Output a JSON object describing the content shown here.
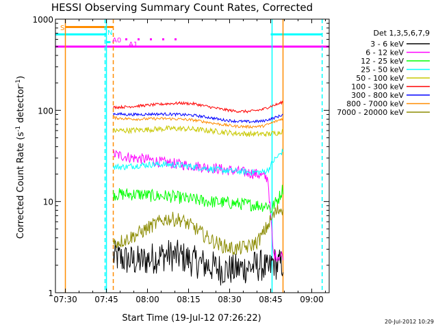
{
  "chart_data": {
    "type": "line",
    "title": "HESSI Observing Summary Count Rates, Corrected",
    "xlabel": "Start Time (19-Jul-12 07:26:22)",
    "ylabel": "Corrected Count Rate (s",
    "ylabel_sup1": "-1",
    "ylabel_mid": " detector",
    "ylabel_sup2": "-1",
    "ylabel_end": ")",
    "yscale": "log",
    "ylim": [
      1,
      1000
    ],
    "x_ticks": [
      "07:30",
      "07:45",
      "08:00",
      "08:15",
      "08:30",
      "08:45",
      "09:00"
    ],
    "x_tick_minutes": [
      30,
      45,
      60,
      75,
      90,
      105,
      120
    ],
    "xlim_minutes": [
      26.37,
      126.37
    ],
    "y_ticks": [
      "1",
      "10",
      "100",
      "1000"
    ],
    "y_tick_values": [
      1,
      10,
      100,
      1000
    ],
    "legend_title": "Det 1,3,5,6,7,9",
    "series": [
      {
        "name": "3 - 6 keV",
        "color": "#000000",
        "start": 47.5,
        "end": 109.5,
        "t": [
          47.5,
          52,
          57,
          62,
          67,
          72,
          77,
          82,
          87,
          92,
          97,
          102,
          104,
          106,
          107.5,
          109.5
        ],
        "v": [
          2.5,
          2.3,
          2.2,
          2.4,
          2.6,
          2.5,
          2.2,
          2.0,
          1.8,
          1.8,
          1.9,
          2.0,
          1.7,
          2.2,
          2.0,
          2.1
        ]
      },
      {
        "name": "6 - 12 keV",
        "color": "#ff00ff",
        "start": 47.5,
        "end": 109.5,
        "t": [
          47.5,
          50,
          55,
          60,
          65,
          70,
          75,
          80,
          85,
          90,
          95,
          100,
          104,
          106,
          108,
          109.5
        ],
        "v": [
          33,
          32,
          30,
          29,
          27,
          26,
          25,
          24,
          23,
          22,
          21,
          20,
          18,
          2.6,
          2.5,
          2.6
        ]
      },
      {
        "name": "12 - 25 keV",
        "color": "#00ff00",
        "start": 47.5,
        "end": 109.5,
        "t": [
          47.5,
          52,
          57,
          62,
          67,
          72,
          77,
          82,
          87,
          92,
          97,
          102,
          104,
          105,
          106,
          108,
          109.5
        ],
        "v": [
          12,
          12,
          12,
          11.5,
          11.5,
          11,
          10.5,
          10,
          9.8,
          9.5,
          9.3,
          9.0,
          9.2,
          8,
          9,
          11,
          14
        ]
      },
      {
        "name": "25 - 50 keV",
        "color": "#00ffff",
        "start": 47.5,
        "end": 109.5,
        "t": [
          47.5,
          52,
          57,
          62,
          67,
          72,
          77,
          82,
          87,
          92,
          97,
          102,
          104,
          106,
          108,
          109.5
        ],
        "v": [
          24,
          24,
          25,
          25.5,
          25.5,
          25,
          24,
          23,
          22,
          21.5,
          21,
          21,
          22,
          28,
          32,
          36
        ]
      },
      {
        "name": "50 - 100 keV",
        "color": "#c8c800",
        "start": 47.5,
        "end": 109.5,
        "t": [
          47.5,
          52,
          57,
          62,
          67,
          72,
          77,
          82,
          87,
          92,
          97,
          102,
          104,
          106,
          108,
          109.5
        ],
        "v": [
          60,
          60,
          61,
          62,
          63,
          63,
          62,
          60,
          58,
          56,
          55,
          55,
          55,
          56,
          57,
          60
        ]
      },
      {
        "name": "100 - 300 keV",
        "color": "#ff0000",
        "start": 47.5,
        "end": 109.5,
        "t": [
          47.5,
          52,
          57,
          62,
          67,
          72,
          77,
          82,
          87,
          92,
          97,
          102,
          104,
          106,
          108,
          109.5
        ],
        "v": [
          108,
          109,
          112,
          115,
          118,
          120,
          118,
          110,
          103,
          98,
          97,
          102,
          108,
          113,
          118,
          124
        ]
      },
      {
        "name": "300 - 800 keV",
        "color": "#0000ff",
        "start": 47.5,
        "end": 109.5,
        "t": [
          47.5,
          52,
          57,
          62,
          67,
          72,
          77,
          82,
          87,
          92,
          97,
          102,
          104,
          106,
          108,
          109.5
        ],
        "v": [
          92,
          90,
          90,
          91,
          91,
          90,
          88,
          84,
          79,
          76,
          75,
          76,
          79,
          82,
          86,
          90
        ]
      },
      {
        "name": "800 - 7000 keV",
        "color": "#ff8c00",
        "start": 47.5,
        "end": 109.5,
        "t": [
          47.5,
          52,
          57,
          62,
          67,
          72,
          77,
          82,
          87,
          92,
          97,
          102,
          104,
          106,
          108,
          109.5
        ],
        "v": [
          83,
          81,
          80,
          81,
          81,
          80,
          78,
          74,
          70,
          67,
          66,
          67,
          70,
          74,
          78,
          82
        ]
      },
      {
        "name": "7000 - 20000 keV",
        "color": "#8b8b00",
        "start": 47.5,
        "end": 109.5,
        "t": [
          47.5,
          52,
          57,
          62,
          67,
          72,
          77,
          82,
          87,
          92,
          97,
          100,
          102,
          104,
          106,
          107.5,
          109.5
        ],
        "v": [
          3.5,
          3.8,
          4.5,
          5.5,
          6.5,
          6.3,
          5.2,
          4.0,
          3.3,
          3.0,
          3.2,
          3.6,
          4.3,
          5.5,
          7.0,
          8.0,
          8.5
        ]
      }
    ],
    "extra_lines": [
      {
        "name": "magenta-baseline",
        "color": "#ff00ff",
        "y": 500,
        "from": 26.37,
        "to": 126.37
      },
      {
        "name": "attenuator-state",
        "color": "#00ffff",
        "segments": [
          [
            26.37,
            45,
            680
          ],
          [
            45,
            46.5,
            560
          ],
          [
            105,
            124,
            680
          ]
        ]
      },
      {
        "name": "saa-flag",
        "color": "#ff8c00",
        "y": 820,
        "from": 30,
        "to": 47.5
      }
    ],
    "vlines": [
      {
        "name": "orange-solid-start",
        "color": "#ff8c00",
        "t": 30,
        "dash": false
      },
      {
        "name": "cyan-dashed-1",
        "color": "#00ffff",
        "t": 44.5,
        "dash": true
      },
      {
        "name": "cyan-solid-1",
        "color": "#00ffff",
        "t": 45,
        "dash": false
      },
      {
        "name": "orange-dashed",
        "color": "#ff8c00",
        "t": 47.5,
        "dash": true
      },
      {
        "name": "cyan-solid-2",
        "color": "#00ffff",
        "t": 105.5,
        "dash": false
      },
      {
        "name": "orange-solid-end",
        "color": "#ff8c00",
        "t": 109.5,
        "dash": false
      },
      {
        "name": "cyan-dashed-2",
        "color": "#00ffff",
        "t": 123.8,
        "dash": true
      }
    ],
    "annotations": [
      {
        "text": "S",
        "color": "#ff8c00"
      },
      {
        "text": "N",
        "color": "#00ffff"
      },
      {
        "text": "A0",
        "color": "#ff00ff"
      },
      {
        "text": "A1",
        "color": "#ff00ff"
      }
    ],
    "footer_date": "20-Jul-2012 10:29"
  }
}
